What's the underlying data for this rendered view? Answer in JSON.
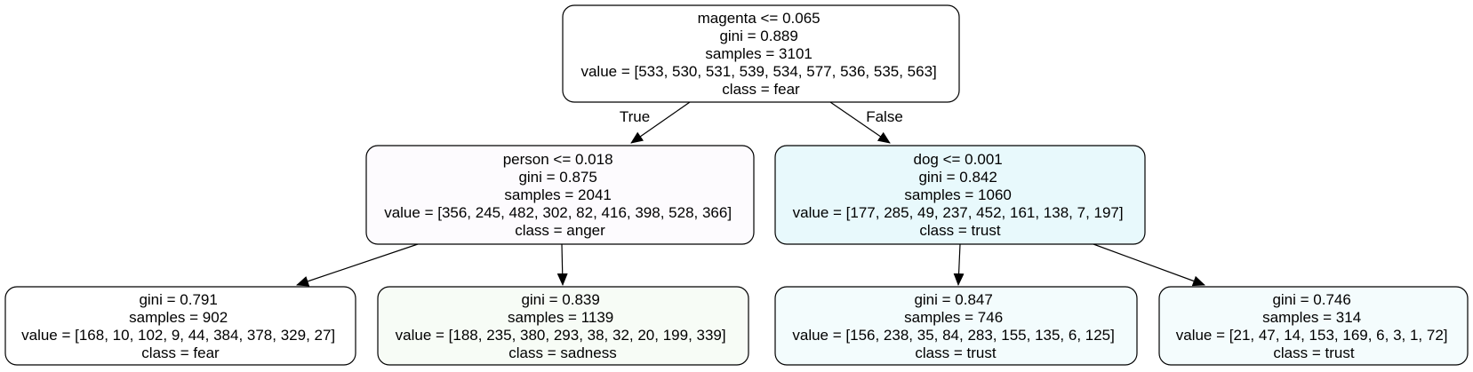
{
  "nodes": {
    "root": {
      "fill": "#ffffff",
      "lines": [
        "magenta <= 0.065",
        "gini = 0.889",
        "samples = 3101",
        "value = [533, 530, 531, 539, 534, 577, 536, 535, 563]",
        "class = fear"
      ]
    },
    "left": {
      "fill": "#fdfbfe",
      "lines": [
        "person <= 0.018",
        "gini = 0.875",
        "samples = 2041",
        "value = [356, 245, 482, 302, 82, 416, 398, 528, 366]",
        "class = anger"
      ]
    },
    "right": {
      "fill": "#e8f9fc",
      "lines": [
        "dog <= 0.001",
        "gini = 0.842",
        "samples = 1060",
        "value = [177, 285, 49, 237, 452, 161, 138, 7, 197]",
        "class = trust"
      ]
    },
    "leaf1": {
      "fill": "#ffffff",
      "lines": [
        "gini = 0.791",
        "samples = 902",
        "value = [168, 10, 102, 9, 44, 384, 378, 329, 27]",
        "class = fear"
      ]
    },
    "leaf2": {
      "fill": "#f7fcf6",
      "lines": [
        "gini = 0.839",
        "samples = 1139",
        "value = [188, 235, 380, 293, 38, 32, 20, 199, 339]",
        "class = sadness"
      ]
    },
    "leaf3": {
      "fill": "#f3fcfd",
      "lines": [
        "gini = 0.847",
        "samples = 746",
        "value = [156, 238, 35, 84, 283, 155, 135, 6, 125]",
        "class = trust"
      ]
    },
    "leaf4": {
      "fill": "#f4fcfd",
      "lines": [
        "gini = 0.746",
        "samples = 314",
        "value = [21, 47, 14, 153, 169, 6, 3, 1, 72]",
        "class = trust"
      ]
    }
  },
  "edges": {
    "root_left_label": "True",
    "root_right_label": "False"
  }
}
